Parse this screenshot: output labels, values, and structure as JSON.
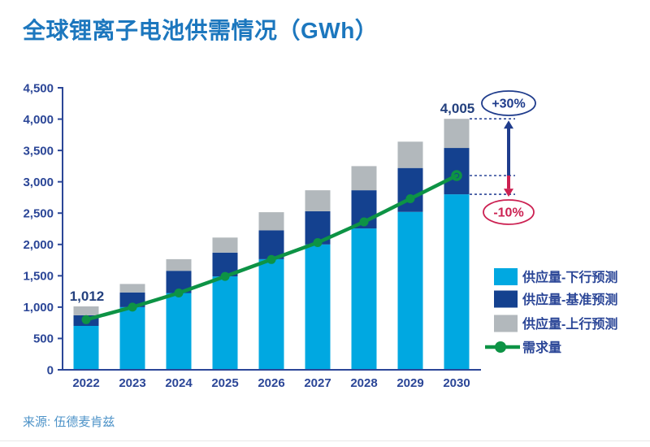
{
  "title": "全球锂离子电池供需情况（GWh）",
  "source": "来源: 伍德麦肯兹",
  "colors": {
    "title": "#1C77BE",
    "axis": "#2B4697",
    "tick_text": "#2B4697",
    "value_label_text": "#23407E",
    "supply_down": "#00A8E1",
    "supply_base": "#14418F",
    "supply_up": "#B2B8BC",
    "demand": "#0D9345",
    "annotation_up": "#1F3C8C",
    "annotation_down": "#CC2152",
    "dashed_line": "#2B4697",
    "source_text": "#4E93C8"
  },
  "chart_data": {
    "type": "bar",
    "subtype": "stacked-bars-with-line",
    "unit": "GWh",
    "title": "全球锂离子电池供需情况（GWh）",
    "categories": [
      "2022",
      "2023",
      "2024",
      "2025",
      "2026",
      "2027",
      "2028",
      "2029",
      "2030"
    ],
    "series": [
      {
        "name": "供应量-下行预测",
        "kind": "bar",
        "color_key": "supply_down",
        "values": [
          700,
          1000,
          1225,
          1490,
          1765,
          2000,
          2255,
          2520,
          2800
        ]
      },
      {
        "name": "供应量-基准预测",
        "kind": "bar",
        "color_key": "supply_base",
        "values": [
          170,
          235,
          355,
          380,
          460,
          530,
          610,
          700,
          740
        ]
      },
      {
        "name": "供应量-上行预测",
        "kind": "bar",
        "color_key": "supply_up",
        "values": [
          142,
          135,
          185,
          240,
          290,
          335,
          385,
          420,
          465
        ]
      },
      {
        "name": "需求量",
        "kind": "line",
        "color_key": "demand",
        "values": [
          800,
          1000,
          1225,
          1490,
          1760,
          2030,
          2360,
          2730,
          3100
        ]
      }
    ],
    "stack_totals": [
      1012,
      1370,
      1765,
      2110,
      2515,
      2865,
      3250,
      3640,
      4005
    ],
    "bar_value_labels": {
      "2022": "1,012",
      "2030": "4,005"
    },
    "y_axis": {
      "min": 0,
      "max": 4500,
      "step": 500,
      "tick_labels": [
        "0",
        "500",
        "1,000",
        "1,500",
        "2,000",
        "2,500",
        "3,000",
        "3,500",
        "4,000",
        "4,500"
      ]
    },
    "grid": "off",
    "legend_position": "right",
    "legend": [
      "供应量-下行预测",
      "供应量-基准预测",
      "供应量-上行预测",
      "需求量"
    ],
    "annotations": {
      "upper": {
        "label": "+30%",
        "from_value": 3100,
        "to_value": 4005
      },
      "lower": {
        "label": "-10%",
        "from_value": 3100,
        "to_value": 2800
      },
      "dashed_levels": [
        4005,
        3100,
        2800
      ]
    }
  }
}
